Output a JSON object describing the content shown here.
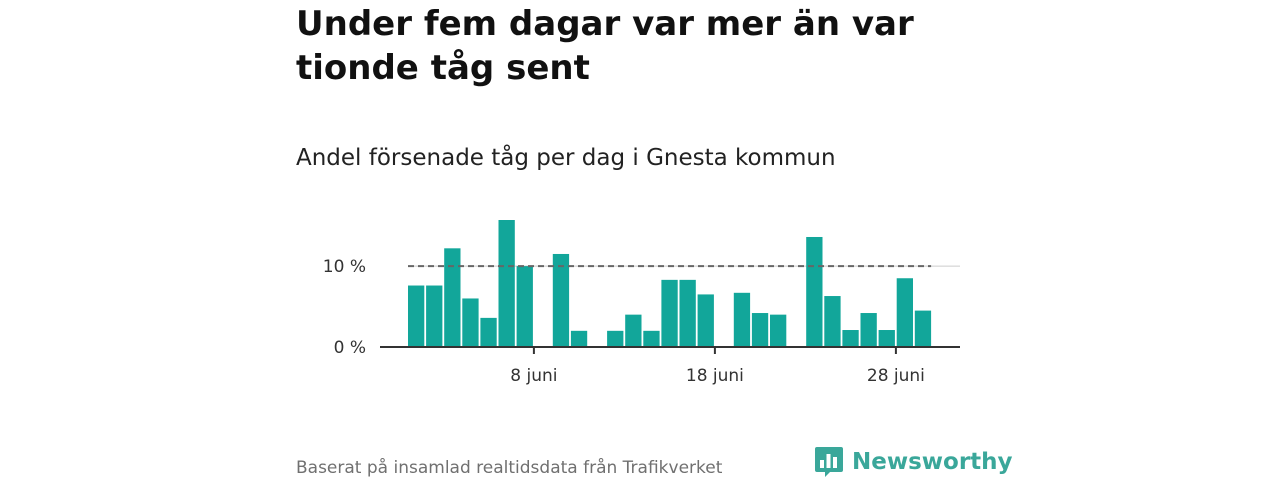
{
  "title": "Under fem dagar var mer än var tionde tåg sent",
  "subtitle": "Andel försenade tåg per dag i Gnesta kommun",
  "footer": "Baserat på insamlad realtidsdata från Trafikverket",
  "brand": "Newsworthy",
  "colors": {
    "bar": "#12a69a",
    "reference_line": "#666666",
    "axis": "#333333",
    "brand": "#3aa79a",
    "grid": "#cccccc"
  },
  "chart_data": {
    "type": "bar",
    "title": "",
    "xlabel": "",
    "ylabel": "",
    "x_start": "2 juni",
    "values": [
      7.6,
      7.6,
      12.2,
      6.0,
      3.6,
      15.7,
      10.0,
      0,
      11.5,
      2.0,
      0,
      2.0,
      4.0,
      2.0,
      8.3,
      8.3,
      6.5,
      0,
      6.7,
      4.2,
      4.0,
      0,
      13.6,
      6.3,
      2.1,
      4.2,
      2.1,
      8.5,
      4.5
    ],
    "ylim": [
      0,
      15.7
    ],
    "yticks": [
      {
        "value": 0,
        "label": "0 %"
      },
      {
        "value": 10,
        "label": "10 %"
      }
    ],
    "xticks": [
      {
        "index": 6,
        "label": "8 juni"
      },
      {
        "index": 16,
        "label": "18 juni"
      },
      {
        "index": 26,
        "label": "28 juni"
      }
    ],
    "reference_line": 10,
    "grid": true
  }
}
